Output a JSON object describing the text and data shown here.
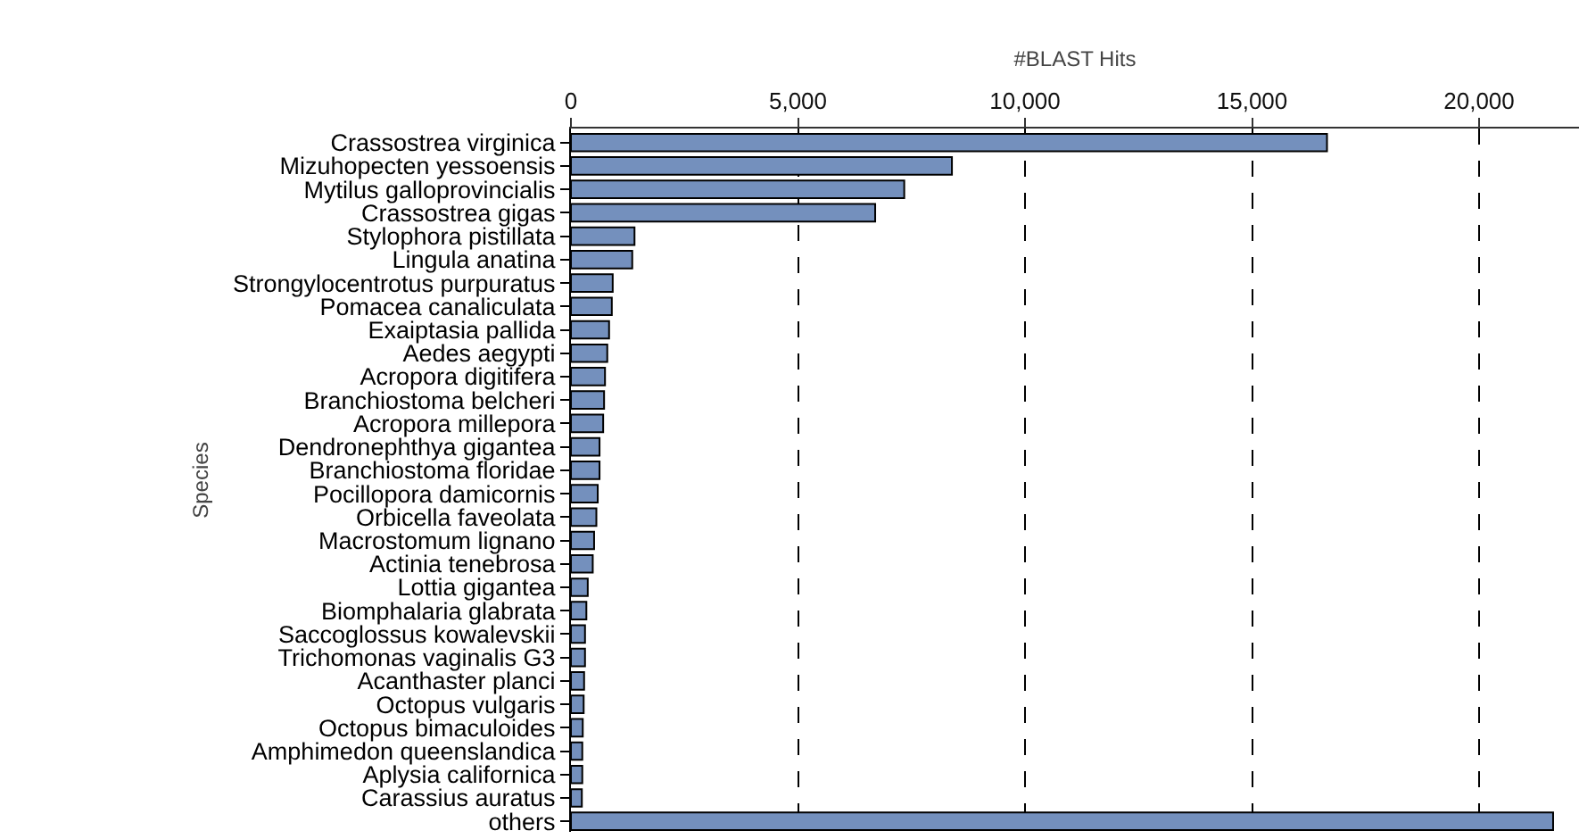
{
  "chart_data": {
    "type": "bar",
    "orientation": "horizontal",
    "xlabel": "#BLAST Hits",
    "ylabel": "Species",
    "categories": [
      "Crassostrea virginica",
      "Mizuhopecten yessoensis",
      "Mytilus galloprovincialis",
      "Crassostrea gigas",
      "Stylophora pistillata",
      "Lingula anatina",
      "Strongylocentrotus purpuratus",
      "Pomacea canaliculata",
      "Exaiptasia pallida",
      "Aedes aegypti",
      "Acropora digitifera",
      "Branchiostoma belcheri",
      "Acropora millepora",
      "Dendronephthya gigantea",
      "Branchiostoma floridae",
      "Pocillopora damicornis",
      "Orbicella faveolata",
      "Macrostomum lignano",
      "Actinia tenebrosa",
      "Lottia gigantea",
      "Biomphalaria glabrata",
      "Saccoglossus kowalevskii",
      "Trichomonas vaginalis G3",
      "Acanthaster planci",
      "Octopus vulgaris",
      "Octopus bimaculoides",
      "Amphimedon queenslandica",
      "Aplysia californica",
      "Carassius auratus",
      "others"
    ],
    "values": [
      16650,
      8390,
      7340,
      6700,
      1400,
      1350,
      920,
      900,
      840,
      800,
      750,
      730,
      710,
      630,
      630,
      590,
      560,
      510,
      480,
      370,
      340,
      310,
      310,
      290,
      280,
      260,
      250,
      250,
      240,
      21630
    ],
    "color": "#7490bd",
    "xlim": [
      0,
      22200
    ],
    "xticks": [
      0,
      {
        "value": 5000,
        "label": "5,000"
      },
      {
        "value": 10000,
        "label": "10,000"
      },
      {
        "value": 15000,
        "label": "15,000"
      },
      {
        "value": 20000,
        "label": "20,000"
      }
    ],
    "grid": "x",
    "legend": false
  }
}
